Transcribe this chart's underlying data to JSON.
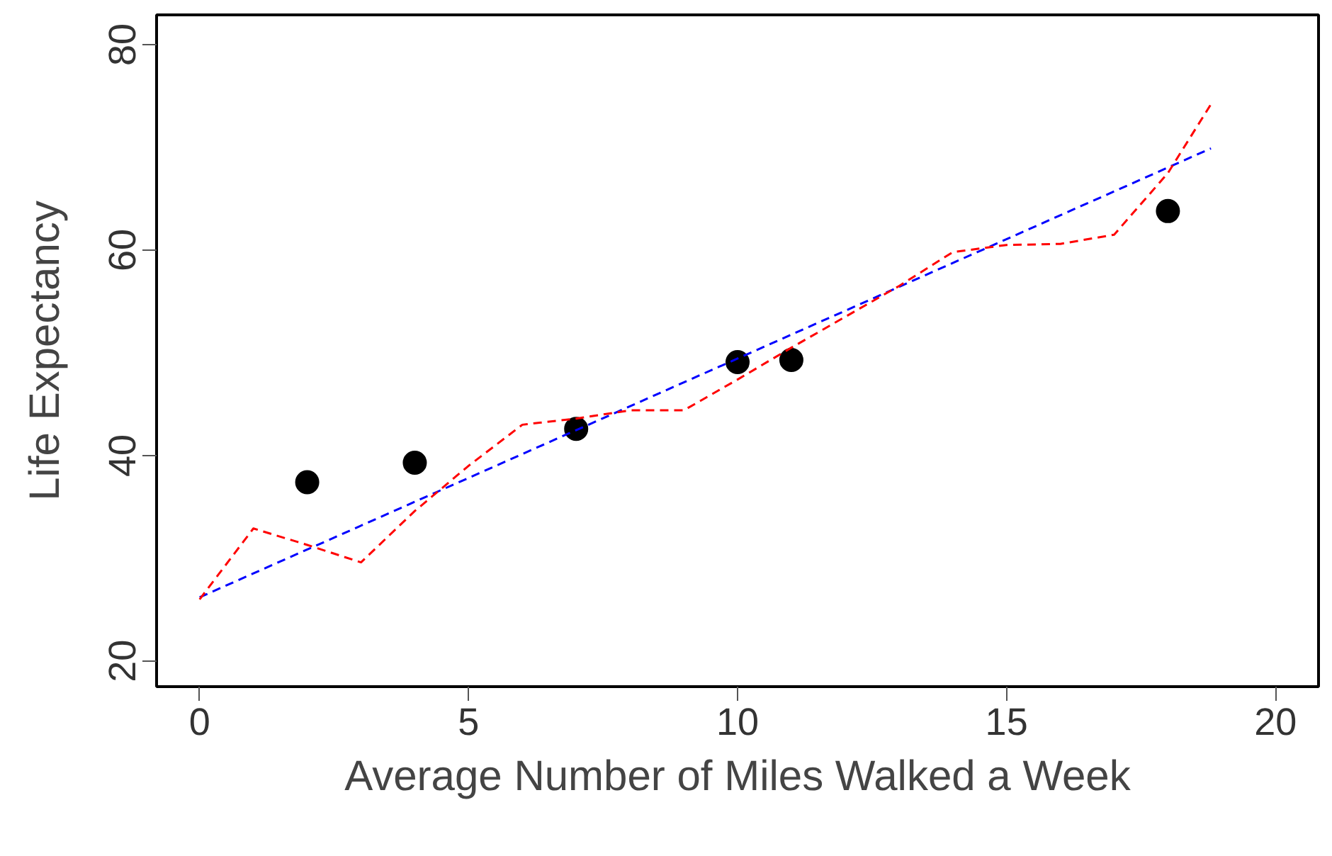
{
  "chart_data": {
    "type": "scatter",
    "xlabel": "Average Number of Miles Walked a Week",
    "ylabel": "Life Expectancy",
    "xlim": [
      -0.8,
      20.8
    ],
    "ylim": [
      17.5,
      82.9
    ],
    "xticks": [
      0,
      5,
      10,
      15,
      20
    ],
    "yticks": [
      20,
      40,
      60,
      80
    ],
    "grid": false,
    "series": [
      {
        "color": "#000000",
        "marker": "circle",
        "x": [
          2,
          4,
          7,
          10,
          11,
          18
        ],
        "values": [
          37.4,
          39.3,
          42.6,
          49.1,
          49.3,
          63.8
        ]
      },
      {
        "type": "line",
        "color": "#0000ff",
        "line_style": "dashed",
        "marker": "none",
        "x": [
          0,
          18.8
        ],
        "values": [
          26.2,
          69.9
        ]
      },
      {
        "type": "line",
        "color": "#ff0000",
        "line_style": "dashed",
        "marker": "none",
        "x": [
          0,
          1,
          2,
          3,
          4,
          5,
          6,
          7,
          8,
          9,
          10,
          11,
          12,
          13,
          14,
          15,
          16,
          17,
          18,
          18.8
        ],
        "values": [
          26,
          32.9,
          31.3,
          29.6,
          34.6,
          39,
          43,
          43.6,
          44.4,
          44.4,
          47.4,
          50.5,
          53.5,
          56.5,
          59.8,
          60.5,
          60.6,
          61.5,
          67.5,
          74.2
        ]
      }
    ]
  }
}
